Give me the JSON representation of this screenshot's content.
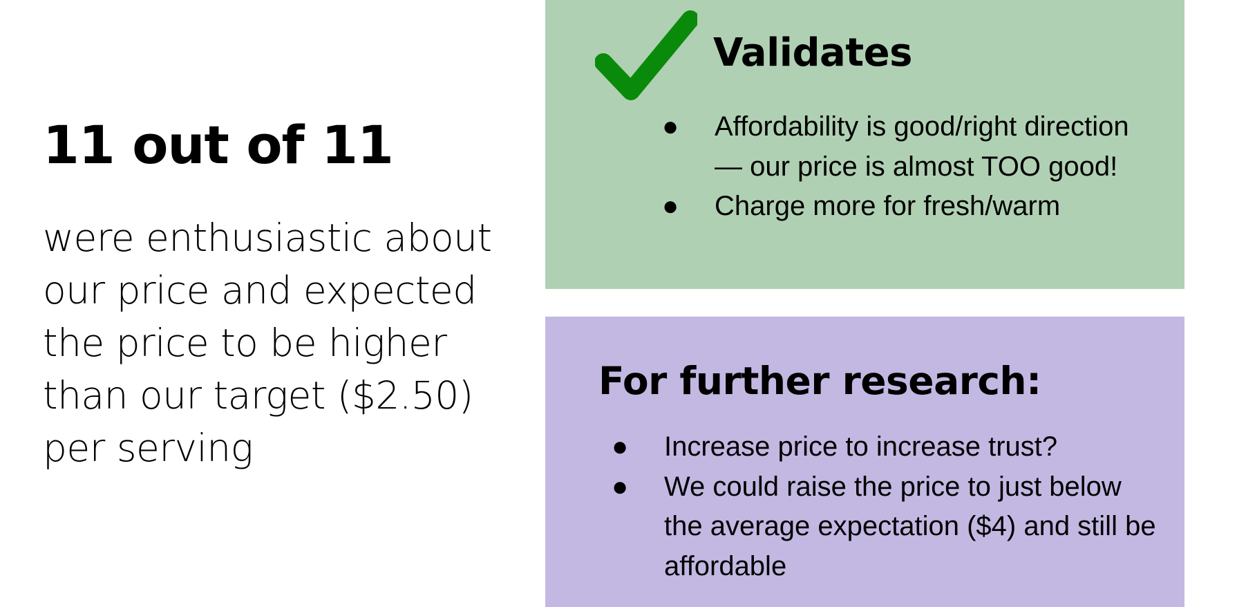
{
  "left": {
    "title": "11 out of 11",
    "body": "were enthusiastic about our price and expected the price to be higher than our target ($2.50) per serving"
  },
  "validates": {
    "icon": "checkmark-icon",
    "icon_color": "#0a8a0a",
    "background": "#b0d0b3",
    "heading": "Validates",
    "bullets": [
      "Affordability is good/right direction — our price is almost TOO good!",
      "Charge more for fresh/warm"
    ]
  },
  "research": {
    "background": "#c3b8e2",
    "heading": "For further research:",
    "bullets": [
      "Increase price to increase trust?",
      "We could raise the price to just below the average expectation ($4) and still be affordable"
    ]
  },
  "bullet_glyph": "●"
}
